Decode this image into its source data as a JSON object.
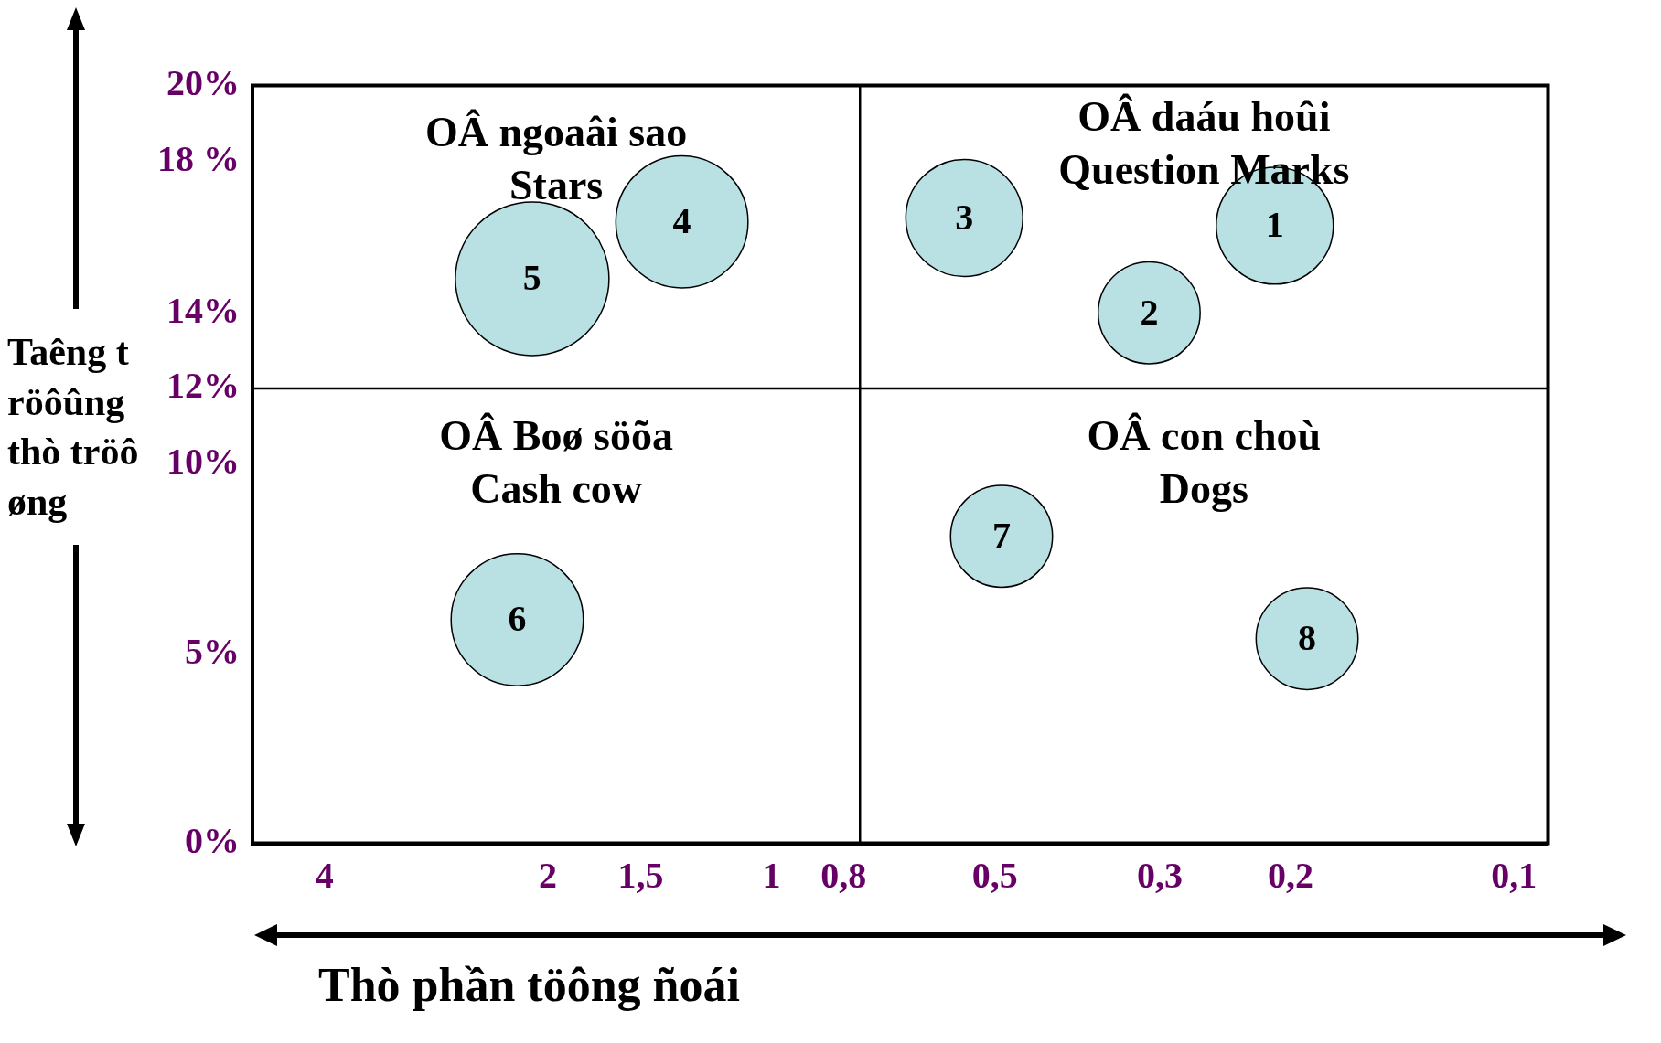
{
  "chart_data": {
    "type": "bubble",
    "xlabel": "Thò phần töông ñoái",
    "ylabel": "Taêng tröôûng thò tröôøng",
    "x": [
      0.21,
      0.31,
      0.55,
      1.32,
      2.1,
      2.2,
      0.49,
      0.19
    ],
    "series": [
      {
        "color": "#b9e0e3",
        "values": [
          16.3,
          14.0,
          16.5,
          16.4,
          14.9,
          5.9,
          8.1,
          5.4
        ],
        "sizes": [
          0.58,
          0.44,
          0.58,
          0.74,
          1,
          0.74,
          0.44,
          0.44
        ]
      }
    ],
    "log": "x",
    "xlim": [
      5,
      0.09
    ],
    "xticks": [
      {
        "value": 4,
        "label": "4"
      },
      {
        "value": 2,
        "label": "2"
      },
      {
        "value": 1.5,
        "label": "1,5"
      },
      {
        "value": 1,
        "label": "1"
      },
      {
        "value": 0.8,
        "label": "0,8"
      },
      {
        "value": 0.5,
        "label": "0,5"
      },
      {
        "value": 0.3,
        "label": "0,3"
      },
      {
        "value": 0.2,
        "label": "0,2"
      },
      {
        "value": 0.1,
        "label": "0,1"
      }
    ],
    "ylim": [
      0,
      20
    ],
    "yticks": [
      {
        "value": 0,
        "label": "0%"
      },
      {
        "value": 5,
        "label": "5%"
      },
      {
        "value": 10,
        "label": "10%"
      },
      {
        "value": 12,
        "label": "12%"
      },
      {
        "value": 14,
        "label": "14%"
      },
      {
        "value": 18,
        "label": "18 %"
      },
      {
        "value": 20,
        "label": "20%"
      }
    ],
    "ref_lines": [
      {
        "axis": "x",
        "value": 0.76,
        "color": "#000000"
      },
      {
        "axis": "y",
        "value": 12,
        "color": "#000000"
      }
    ],
    "annotations": [
      "OÂ ngoaâi sao\nStars",
      "OÂ daáu hoûi\nQuestion Marks",
      "OÂ Boø söõa\nCash cow",
      "OÂ con choù\nDogs",
      {
        "text": "1",
        "x": 0.21,
        "y": 16.3
      },
      {
        "text": "2",
        "x": 0.31,
        "y": 14.0
      },
      {
        "text": "3",
        "x": 0.55,
        "y": 16.5
      },
      {
        "text": "4",
        "x": 1.32,
        "y": 16.4
      },
      {
        "text": "5",
        "x": 2.1,
        "y": 14.9
      },
      {
        "text": "6",
        "x": 2.2,
        "y": 5.9
      },
      {
        "text": "7",
        "x": 0.49,
        "y": 8.1
      },
      {
        "text": "8",
        "x": 0.19,
        "y": 5.4
      }
    ],
    "grid": false,
    "legend": false,
    "marker": "circle"
  }
}
